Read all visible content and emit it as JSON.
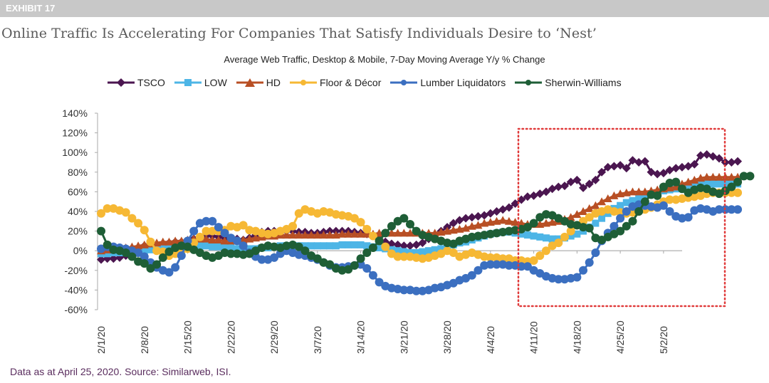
{
  "exhibit_label": "EXHIBIT 17",
  "title": "Online Traffic Is Accelerating For Companies That Satisfy Individuals Desire to ‘Nest’",
  "footer": "Data as at April 25, 2020. Source: Similarweb, ISI.",
  "chart_data": {
    "type": "line",
    "title": "Average Web Traffic, Desktop & Mobile, 7-Day Moving Average Y/y % Change",
    "xlabel": "",
    "ylabel": "",
    "ylim": [
      -60,
      140
    ],
    "yticks": [
      -60,
      -40,
      -20,
      0,
      20,
      40,
      60,
      80,
      100,
      120,
      140
    ],
    "ytick_labels": [
      "-60%",
      "-40%",
      "-20%",
      "0%",
      "20%",
      "40%",
      "60%",
      "80%",
      "100%",
      "120%",
      "140%"
    ],
    "x_start": "2/1/20",
    "x_step_days": 1,
    "xtick_labels": [
      "2/1/20",
      "2/8/20",
      "2/15/20",
      "2/22/20",
      "2/29/20",
      "3/7/20",
      "3/14/20",
      "3/21/20",
      "3/28/20",
      "4/4/20",
      "4/11/20",
      "4/18/20",
      "4/25/20",
      "5/2/20"
    ],
    "xtick_index": [
      0,
      7,
      14,
      21,
      28,
      35,
      42,
      49,
      56,
      63,
      70,
      77,
      84,
      91
    ],
    "legend_position": "top",
    "highlight_box": {
      "from_index": 69,
      "to_index": 100,
      "color": "#e03a3a",
      "style": "dotted"
    },
    "series": [
      {
        "name": "TSCO",
        "color": "#4b1650",
        "marker": "diamond",
        "values": [
          -9,
          -8,
          -8,
          -7,
          -5,
          -2,
          2,
          5,
          5,
          6,
          7,
          8,
          9,
          9,
          10,
          12,
          14,
          15,
          15,
          14,
          13,
          12,
          12,
          11,
          13,
          16,
          19,
          20,
          20,
          20,
          20,
          20,
          19,
          19,
          18,
          18,
          19,
          20,
          20,
          20,
          20,
          19,
          18,
          17,
          15,
          12,
          9,
          7,
          6,
          5,
          5,
          6,
          8,
          12,
          16,
          20,
          24,
          28,
          31,
          33,
          34,
          35,
          36,
          38,
          40,
          42,
          44,
          48,
          52,
          55,
          56,
          58,
          60,
          63,
          65,
          66,
          70,
          72,
          64,
          68,
          72,
          80,
          85,
          86,
          87,
          84,
          92,
          90,
          91,
          80,
          78,
          79,
          82,
          84,
          85,
          86,
          88,
          97,
          98,
          96,
          94,
          90,
          90,
          91
        ]
      },
      {
        "name": "LOW",
        "color": "#4db5e6",
        "marker": "square",
        "values": [
          -3,
          -3,
          -2,
          -2,
          -1,
          -1,
          0,
          0,
          1,
          1,
          2,
          2,
          3,
          3,
          4,
          5,
          5,
          5,
          4,
          4,
          3,
          3,
          2,
          2,
          2,
          2,
          3,
          3,
          4,
          5,
          5,
          5,
          5,
          5,
          5,
          5,
          5,
          5,
          5,
          6,
          6,
          6,
          6,
          5,
          4,
          3,
          2,
          1,
          0,
          -1,
          -2,
          -2,
          -1,
          0,
          1,
          2,
          4,
          6,
          8,
          9,
          11,
          13,
          15,
          17,
          18,
          19,
          19,
          18,
          17,
          16,
          15,
          14,
          13,
          12,
          12,
          13,
          15,
          17,
          20,
          24,
          28,
          33,
          38,
          43,
          46,
          49,
          51,
          53,
          55,
          57,
          59,
          61,
          62,
          63,
          64,
          65,
          66,
          67,
          68,
          68,
          68,
          68,
          68,
          68
        ]
      },
      {
        "name": "HD",
        "color": "#b84f24",
        "marker": "triangle",
        "values": [
          0,
          1,
          1,
          2,
          3,
          4,
          5,
          6,
          7,
          8,
          9,
          9,
          10,
          10,
          11,
          12,
          12,
          12,
          11,
          11,
          10,
          10,
          10,
          11,
          12,
          13,
          14,
          15,
          15,
          16,
          16,
          16,
          16,
          16,
          16,
          16,
          16,
          16,
          16,
          17,
          17,
          17,
          17,
          17,
          17,
          18,
          18,
          18,
          18,
          18,
          18,
          18,
          18,
          18,
          18,
          19,
          20,
          21,
          22,
          23,
          25,
          26,
          28,
          29,
          30,
          31,
          30,
          29,
          28,
          27,
          27,
          27,
          28,
          29,
          30,
          32,
          34,
          37,
          40,
          43,
          46,
          50,
          53,
          56,
          58,
          59,
          60,
          60,
          60,
          61,
          62,
          63,
          64,
          65,
          68,
          70,
          72,
          74,
          75,
          75,
          75,
          75,
          75,
          75
        ]
      },
      {
        "name": "Floor & Décor",
        "color": "#f6b834",
        "marker": "circle",
        "values": [
          38,
          43,
          43,
          41,
          39,
          33,
          28,
          21,
          9,
          0,
          -1,
          -5,
          -3,
          0,
          2,
          8,
          14,
          20,
          20,
          20,
          21,
          25,
          24,
          26,
          21,
          20,
          18,
          17,
          18,
          20,
          22,
          25,
          38,
          42,
          40,
          38,
          40,
          39,
          37,
          36,
          35,
          33,
          29,
          22,
          15,
          10,
          4,
          -3,
          -6,
          -6,
          -6,
          -7,
          -8,
          -7,
          -5,
          -3,
          0,
          -2,
          -6,
          -4,
          -2,
          -4,
          -6,
          -7,
          -7,
          -8,
          -8,
          -10,
          -10,
          -11,
          -10,
          -5,
          0,
          5,
          8,
          14,
          20,
          26,
          30,
          34,
          38,
          40,
          42,
          40,
          39,
          38,
          39,
          40,
          42,
          44,
          47,
          50,
          52,
          52,
          53,
          54,
          55,
          56,
          58,
          59,
          59,
          59,
          59,
          59
        ]
      },
      {
        "name": "Lumber Liquidators",
        "color": "#3b6fc0",
        "marker": "circle",
        "values": [
          2,
          4,
          4,
          3,
          2,
          0,
          -2,
          -6,
          -12,
          -17,
          -20,
          -22,
          -17,
          -5,
          10,
          20,
          28,
          30,
          30,
          24,
          18,
          13,
          10,
          5,
          -2,
          -6,
          -9,
          -9,
          -7,
          -3,
          0,
          -2,
          -4,
          -5,
          -7,
          -9,
          -12,
          -15,
          -17,
          -17,
          -16,
          -15,
          -14,
          -18,
          -25,
          -32,
          -36,
          -38,
          -39,
          -40,
          -40,
          -41,
          -41,
          -40,
          -38,
          -37,
          -35,
          -33,
          -30,
          -28,
          -25,
          -20,
          -15,
          -14,
          -14,
          -14,
          -15,
          -15,
          -16,
          -16,
          -20,
          -23,
          -26,
          -28,
          -29,
          -29,
          -28,
          -27,
          -20,
          -12,
          -2,
          10,
          18,
          25,
          33,
          40,
          45,
          47,
          46,
          45,
          44,
          46,
          40,
          35,
          33,
          34,
          41,
          43,
          42,
          40,
          42,
          42,
          42,
          42
        ]
      },
      {
        "name": "Sherwin-Williams",
        "color": "#1e5e36",
        "marker": "circle",
        "values": [
          20,
          6,
          1,
          0,
          -2,
          -6,
          -11,
          -13,
          -18,
          -14,
          -7,
          -1,
          3,
          5,
          4,
          1,
          -2,
          -5,
          -7,
          -5,
          -2,
          -3,
          -3,
          -4,
          -3,
          0,
          3,
          5,
          4,
          3,
          5,
          6,
          4,
          0,
          -5,
          -8,
          -12,
          -14,
          -18,
          -20,
          -19,
          -15,
          -8,
          -2,
          3,
          10,
          18,
          25,
          30,
          33,
          27,
          20,
          16,
          14,
          12,
          10,
          8,
          7,
          10,
          12,
          14,
          15,
          16,
          17,
          18,
          19,
          20,
          21,
          22,
          24,
          28,
          34,
          37,
          36,
          33,
          30,
          27,
          26,
          24,
          23,
          13,
          11,
          14,
          17,
          20,
          25,
          30,
          40,
          50,
          57,
          56,
          65,
          69,
          70,
          63,
          59,
          62,
          64,
          63,
          60,
          58,
          61,
          65,
          70,
          76,
          76
        ]
      }
    ]
  }
}
